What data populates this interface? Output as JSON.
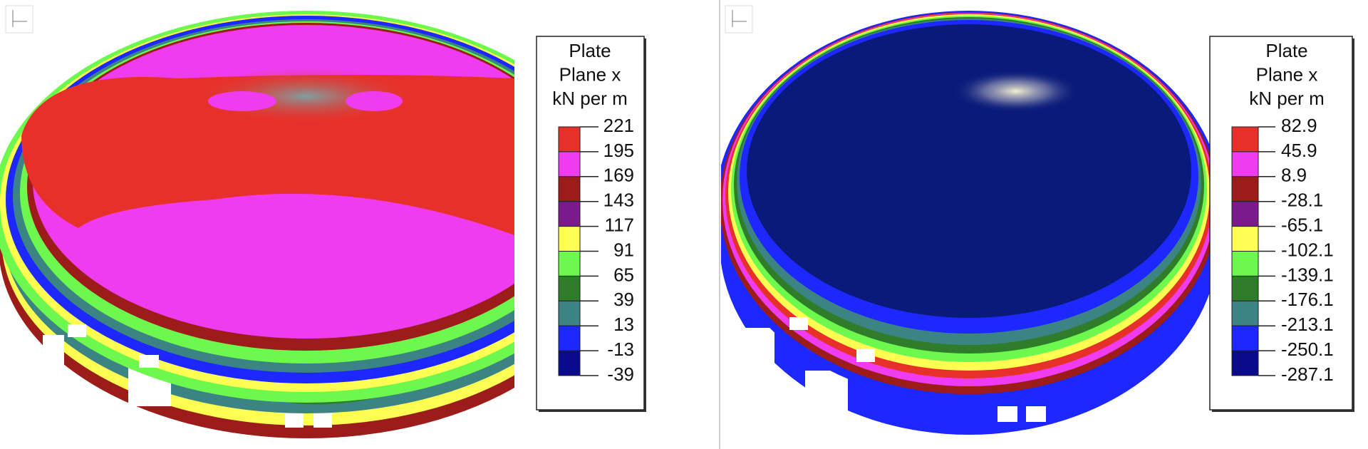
{
  "panels": [
    {
      "legend": {
        "title": [
          "Plate",
          "Plane x",
          "kN per m"
        ],
        "levels": [
          221,
          195,
          169,
          143,
          117,
          91,
          65,
          39,
          13,
          -13,
          -39
        ],
        "colors": [
          "#e8302a",
          "#f03cf0",
          "#9b1c18",
          "#7a1a8c",
          "#fdfd52",
          "#6cf84c",
          "#2f7d2a",
          "#3c8484",
          "#1c28ff",
          "#0a0a8c"
        ]
      }
    },
    {
      "legend": {
        "title": [
          "Plate",
          "Plane x",
          "kN per m"
        ],
        "levels": [
          82.9,
          45.9,
          8.9,
          -28.1,
          -65.1,
          -102.1,
          -139.1,
          -176.1,
          -213.1,
          -250.1,
          -287.1
        ],
        "colors": [
          "#e8302a",
          "#f03cf0",
          "#9b1c18",
          "#7a1a8c",
          "#fdfd52",
          "#6cf84c",
          "#2f7d2a",
          "#3c8484",
          "#1c28ff",
          "#0a0a8c"
        ]
      }
    }
  ]
}
